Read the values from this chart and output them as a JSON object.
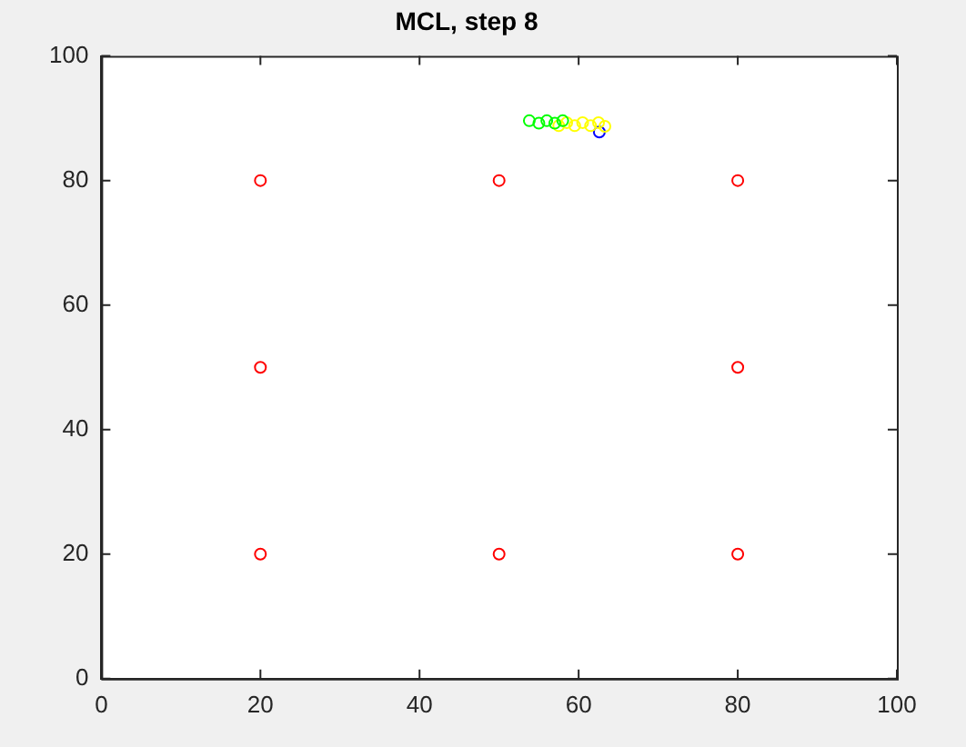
{
  "chart_data": {
    "type": "scatter",
    "title": "MCL, step 8",
    "xlim": [
      0,
      100
    ],
    "ylim": [
      0,
      100
    ],
    "xticks": [
      0,
      20,
      40,
      60,
      80,
      100
    ],
    "yticks": [
      0,
      20,
      40,
      60,
      80,
      100
    ],
    "grid": false,
    "legend": false,
    "marker": "circle",
    "series": [
      {
        "color": "#ff0000",
        "x": [
          20,
          50,
          80,
          20,
          80,
          20,
          50,
          80
        ],
        "values": [
          20,
          20,
          20,
          50,
          50,
          80,
          80,
          80
        ]
      },
      {
        "color": "#00ff00",
        "x": [
          53.8,
          55.0,
          56.0,
          57.0,
          58.0
        ],
        "values": [
          89.6,
          89.2,
          89.6,
          89.2,
          89.6
        ]
      },
      {
        "color": "#ffff00",
        "x": [
          57.5,
          58.5,
          59.5,
          60.5,
          61.5,
          62.5,
          63.3
        ],
        "values": [
          88.8,
          89.3,
          88.8,
          89.3,
          88.8,
          89.3,
          88.7
        ]
      },
      {
        "color": "#0000ff",
        "x": [
          62.6
        ],
        "values": [
          87.8
        ]
      }
    ]
  }
}
